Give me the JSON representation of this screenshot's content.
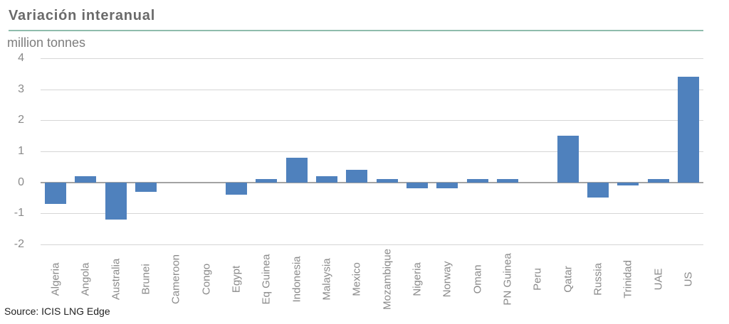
{
  "header": {
    "title": "Variación interanual",
    "unit": "million tonnes"
  },
  "footer": {
    "source": "Source: ICIS LNG Edge"
  },
  "colors": {
    "bar": "#4f81bd",
    "title": "#6a6a6a",
    "subtitle": "#7d7d7d",
    "axis_text": "#8a8a8a",
    "gridline": "#d6d6d6",
    "zero_line": "#a3a3a3",
    "title_rule": "#8fbcac"
  },
  "chart_data": {
    "type": "bar",
    "title": "Variación interanual",
    "xlabel": "",
    "ylabel": "million tonnes",
    "categories": [
      "Algeria",
      "Angola",
      "Australia",
      "Brunei",
      "Cameroon",
      "Congo",
      "Egypt",
      "Eq Guinea",
      "Indonesia",
      "Malaysia",
      "Mexico",
      "Mozambique",
      "Nigeria",
      "Norway",
      "Oman",
      "PN Guinea",
      "Peru",
      "Qatar",
      "Russia",
      "Trinidad",
      "UAE",
      "US"
    ],
    "values": [
      -0.7,
      0.2,
      -1.2,
      -0.3,
      0,
      0,
      -0.4,
      0.1,
      0.8,
      0.2,
      0.4,
      0.1,
      -0.2,
      -0.2,
      0.1,
      0.1,
      0,
      1.5,
      -0.5,
      -0.1,
      0.1,
      3.4
    ],
    "ylim": [
      -2,
      4
    ],
    "yticks": [
      4,
      3,
      2,
      1,
      0,
      -1,
      -2
    ],
    "grid": "horizontal",
    "legend": "none",
    "bar_color": "#4f81bd"
  }
}
